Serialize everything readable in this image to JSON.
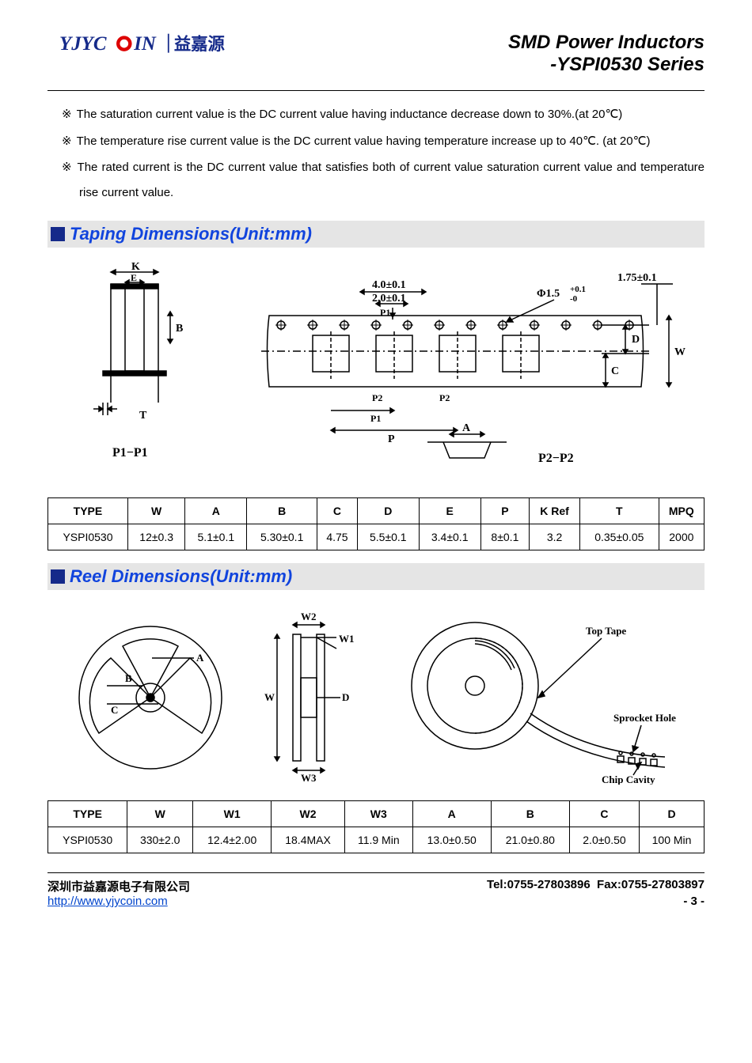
{
  "header": {
    "logo_text_en": "YJYCOIN",
    "logo_text_cn": "益嘉源",
    "title_line1": "SMD Power Inductors",
    "title_line2": "-YSPI0530 Series"
  },
  "notes": [
    "The saturation current value is the DC current value having inductance decrease down to 30%.(at 20℃)",
    "The temperature rise current value is the DC current value having temperature increase up to 40℃. (at 20℃)",
    "The rated current is the DC current value that satisfies both of current value saturation current value and temperature rise current value."
  ],
  "note_marker": "※",
  "sections": {
    "taping": "Taping Dimensions(Unit:mm)",
    "reel": "Reel Dimensions(Unit:mm)"
  },
  "taping_diagram": {
    "labels": {
      "K": "K",
      "E": "E",
      "B": "B",
      "T": "T",
      "P1P1": "P1−P1",
      "P1": "P1",
      "P2": "P2",
      "P": "P",
      "A": "A",
      "P2P2": "P2−P2",
      "D": "D",
      "C": "C",
      "W": "W"
    },
    "dims": {
      "top1": "4.0±0.1",
      "top2": "2.0±0.1",
      "phi": "Φ1.5",
      "phi_tol": "+0.1",
      "phi_tol2": "-0",
      "right": "1.75±0.1"
    }
  },
  "reel_diagram": {
    "labels": {
      "A": "A",
      "B": "B",
      "C": "C",
      "W": "W",
      "W1": "W1",
      "W2": "W2",
      "W3": "W3",
      "D": "D",
      "top": "Top Tape",
      "sprocket": "Sprocket Hole",
      "chip": "Chip Cavity"
    }
  },
  "taping_table": {
    "columns": [
      "TYPE",
      "W",
      "A",
      "B",
      "C",
      "D",
      "E",
      "P",
      "K Ref",
      "T",
      "MPQ"
    ],
    "rows": [
      [
        "YSPI0530",
        "12±0.3",
        "5.1±0.1",
        "5.30±0.1",
        "4.75",
        "5.5±0.1",
        "3.4±0.1",
        "8±0.1",
        "3.2",
        "0.35±0.05",
        "2000"
      ]
    ]
  },
  "reel_table": {
    "columns": [
      "TYPE",
      "W",
      "W1",
      "W2",
      "W3",
      "A",
      "B",
      "C",
      "D"
    ],
    "rows": [
      [
        "YSPI0530",
        "330±2.0",
        "12.4±2.00",
        "18.4MAX",
        "11.9 Min",
        "13.0±0.50",
        "21.0±0.80",
        "2.0±0.50",
        "100 Min"
      ]
    ]
  },
  "footer": {
    "company": "深圳市益嘉源电子有限公司",
    "tel": "Tel:0755-27803896",
    "fax": "Fax:0755-27803897",
    "url": "http://www.yjycoin.com",
    "page": "- 3 -"
  },
  "colors": {
    "accent": "#1144dd",
    "square": "#152a8a",
    "section_bg": "#e5e5e5",
    "border": "#000000"
  }
}
